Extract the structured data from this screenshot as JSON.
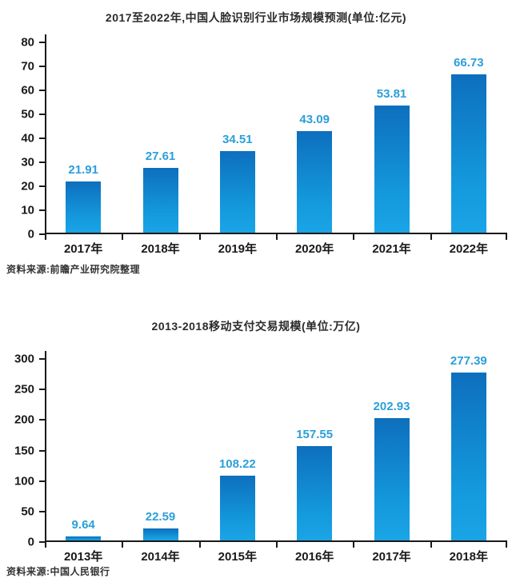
{
  "colors": {
    "background": "#ffffff",
    "bar_gradient_top": "#0d6fbd",
    "bar_gradient_bottom": "#1aa4e6",
    "value_label": "#2b9fd9",
    "axis": "#1a1a1a",
    "tick_label": "#1a1a1a",
    "title_text": "#2b2b2b",
    "source_text": "#333333"
  },
  "chart_data": [
    {
      "type": "bar",
      "title": "2017至2022年,中国人脸识别行业市场规模预测(单位:亿元)",
      "categories": [
        "2017年",
        "2018年",
        "2019年",
        "2020年",
        "2021年",
        "2022年"
      ],
      "values": [
        21.91,
        27.61,
        34.51,
        43.09,
        53.81,
        66.73
      ],
      "value_labels": [
        "21.91",
        "27.61",
        "34.51",
        "43.09",
        "53.81",
        "66.73"
      ],
      "xlabel": "",
      "ylabel": "",
      "ylim": [
        0,
        80
      ],
      "ytick_step": 10,
      "ytick_labels": [
        "0",
        "10",
        "20",
        "30",
        "40",
        "50",
        "60",
        "70",
        "80"
      ],
      "grid": false,
      "legend": "none",
      "source": "资料来源:前瞻产业研究院整理"
    },
    {
      "type": "bar",
      "title": "2013-2018移动支付交易规模(单位:万亿)",
      "categories": [
        "2013年",
        "2014年",
        "2015年",
        "2016年",
        "2017年",
        "2018年"
      ],
      "values": [
        9.64,
        22.59,
        108.22,
        157.55,
        202.93,
        277.39
      ],
      "value_labels": [
        "9.64",
        "22.59",
        "108.22",
        "157.55",
        "202.93",
        "277.39"
      ],
      "xlabel": "",
      "ylabel": "",
      "ylim": [
        0,
        300
      ],
      "ytick_step": 50,
      "ytick_labels": [
        "0",
        "50",
        "100",
        "150",
        "200",
        "250",
        "300"
      ],
      "grid": false,
      "legend": "none",
      "source": "资料来源:中国人民银行"
    }
  ]
}
